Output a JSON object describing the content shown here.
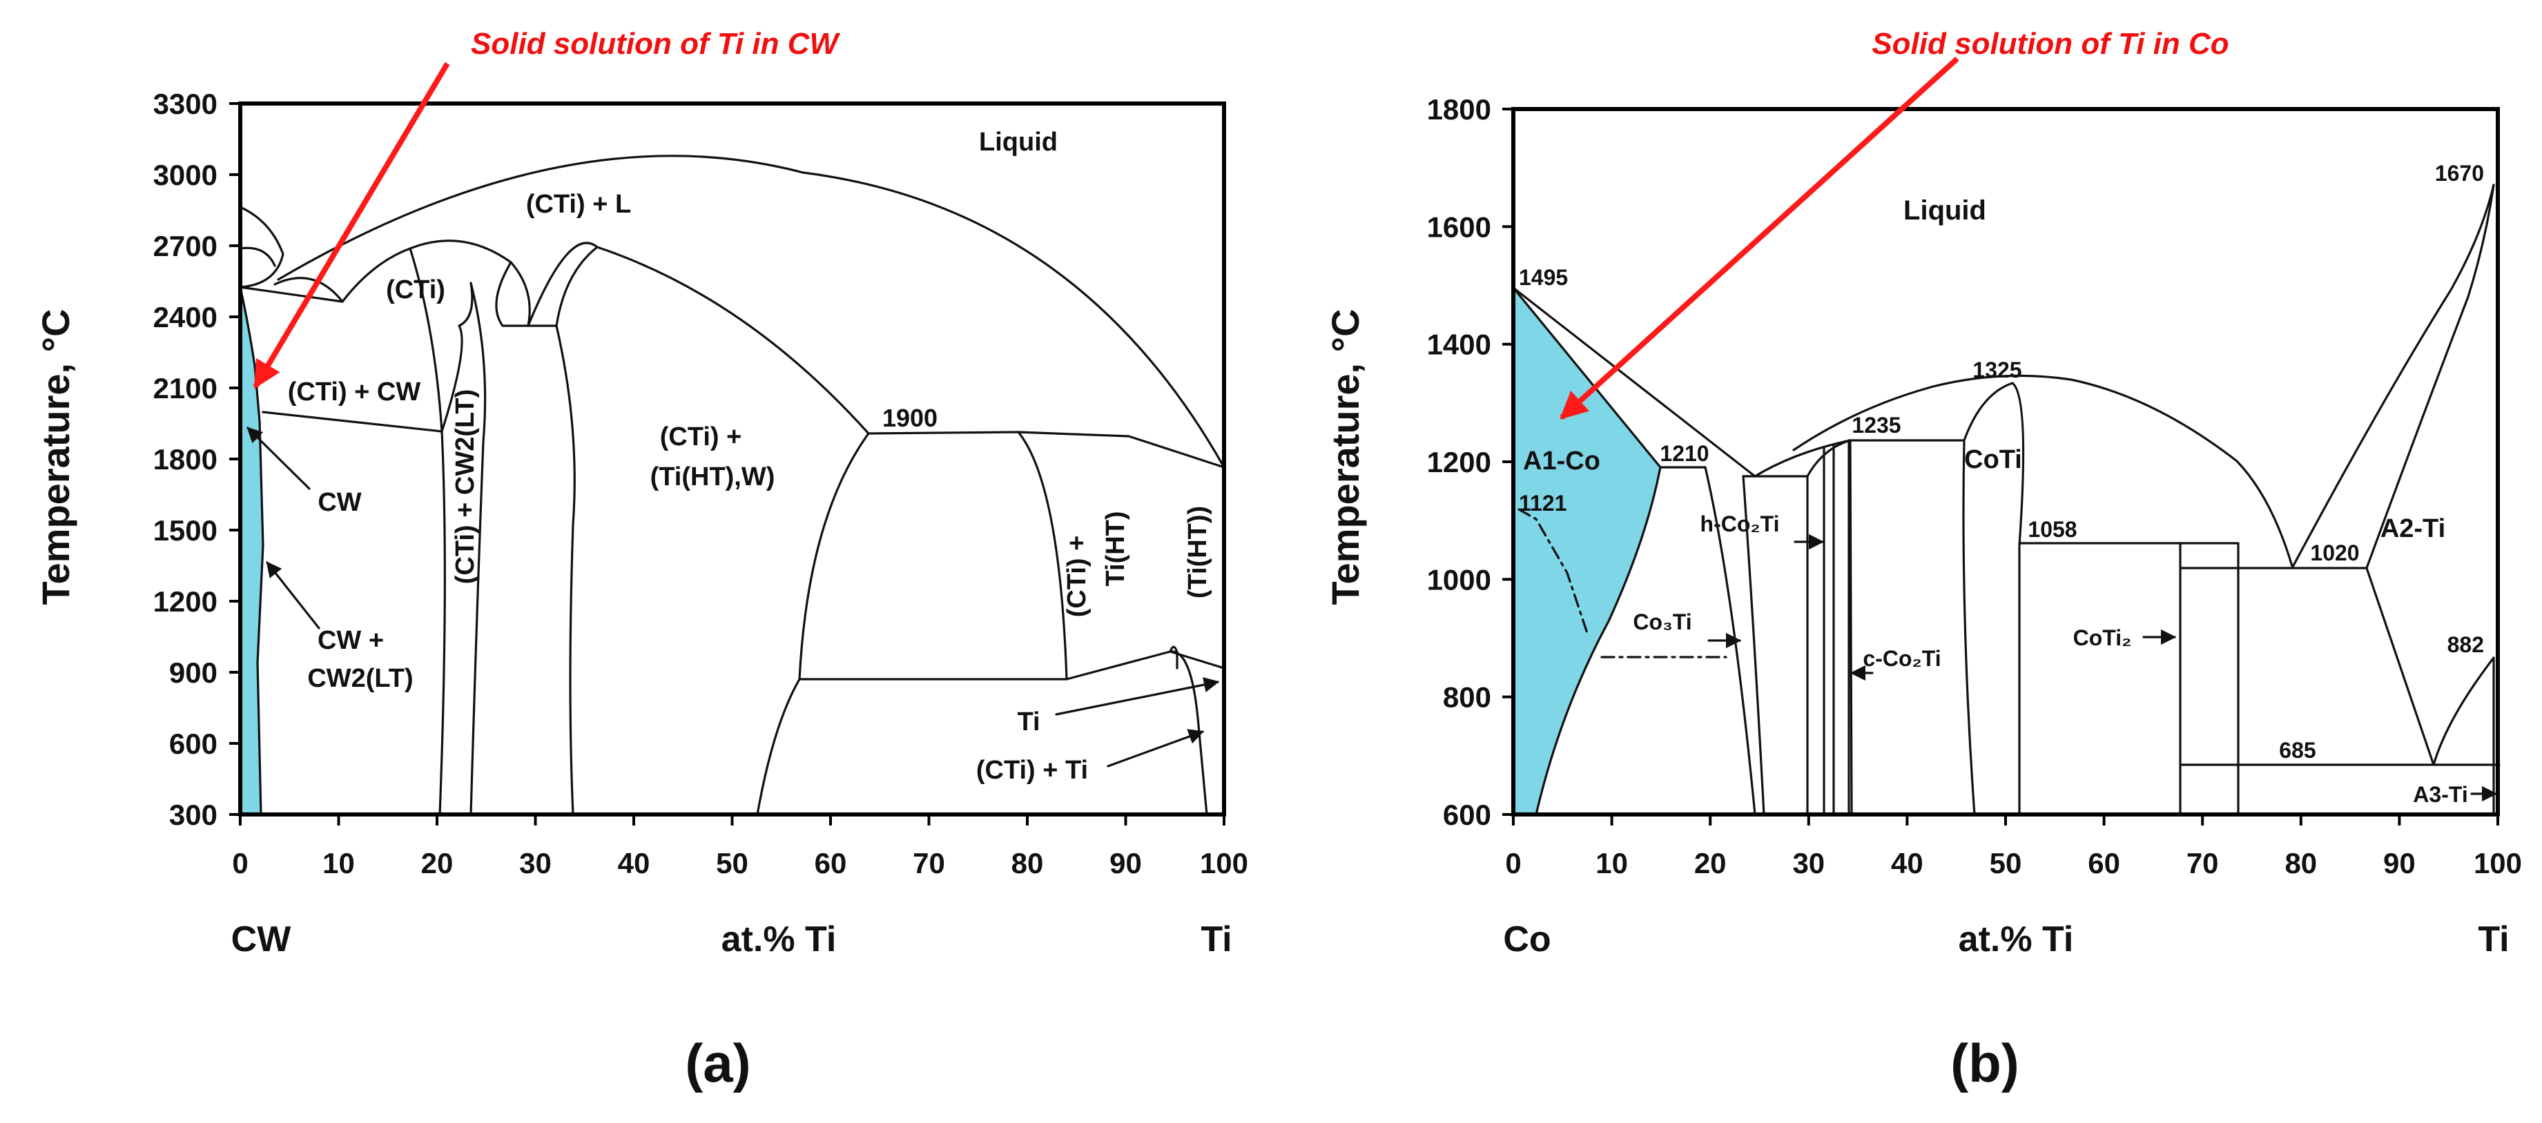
{
  "colors": {
    "shade": "#7fd6e6",
    "annotation": "#ff1a1a",
    "ink": "#111111"
  },
  "figure": {
    "panels": [
      {
        "id": "a",
        "panel_label": "(a)",
        "annotation": "Solid solution of Ti in CW",
        "ylabel": "Temperature, °C",
        "x_unit_label": "at.% Ti",
        "x_left_label": "CW",
        "x_right_label": "Ti",
        "xticks": [
          "0",
          "10",
          "20",
          "30",
          "40",
          "50",
          "60",
          "70",
          "80",
          "90",
          "100"
        ],
        "yticks": [
          "300",
          "600",
          "900",
          "1200",
          "1500",
          "1800",
          "2100",
          "2400",
          "2700",
          "3000",
          "3300"
        ],
        "texts": {
          "liquid": "Liquid",
          "cti_l": "(CTi) + L",
          "cti": "(CTi)",
          "cti_cw": "(CTi) + CW",
          "cw": "CW",
          "cw_cw2_1": "CW +",
          "cw_cw2_2": "CW2(LT)",
          "mid_1": "(CTi) +",
          "mid_2": "(Ti(HT),W)",
          "t1900": "1900",
          "v_cti_cw2": "(CTi)  + CW2(LT)",
          "v_cti_tiht_1": "(CTi) +",
          "v_cti_tiht_2": "Ti(HT)",
          "v_tiht": "(Ti(HT))",
          "ti": "Ti",
          "cti_ti": "(CTi) + Ti"
        }
      },
      {
        "id": "b",
        "panel_label": "(b)",
        "annotation": "Solid solution of Ti in Co",
        "ylabel": "Temperature, °C",
        "x_unit_label": "at.% Ti",
        "x_left_label": "Co",
        "x_right_label": "Ti",
        "xticks": [
          "0",
          "10",
          "20",
          "30",
          "40",
          "50",
          "60",
          "70",
          "80",
          "90",
          "100"
        ],
        "yticks": [
          "600",
          "800",
          "1000",
          "1200",
          "1400",
          "1600",
          "1800"
        ],
        "texts": {
          "liquid": "Liquid",
          "t1495": "1495",
          "t1670": "1670",
          "t1325": "1325",
          "t1235": "1235",
          "t1210": "1210",
          "a1co": "A1-Co",
          "t1121": "1121",
          "coti": "CoTi",
          "t1058": "1058",
          "t1020": "1020",
          "a2ti": "A2-Ti",
          "t882": "882",
          "hco2ti": "h-Co₂Ti",
          "co3ti": "Co₃Ti",
          "cco2ti": "c-Co₂Ti",
          "coti2": "CoTi₂",
          "t685": "685",
          "a3ti": "A3-Ti"
        }
      }
    ]
  },
  "chart_data": [
    {
      "type": "line",
      "title": "",
      "xlabel": "at.% Ti",
      "ylabel": "Temperature, °C",
      "xlim": [
        0,
        100
      ],
      "ylim": [
        300,
        3300
      ],
      "x_end_labels": [
        "CW",
        "Ti"
      ],
      "labeled_points": [
        {
          "name": "1900",
          "x": 63,
          "y": 1900
        }
      ],
      "series": []
    },
    {
      "type": "line",
      "title": "",
      "xlabel": "at.% Ti",
      "ylabel": "Temperature, °C",
      "xlim": [
        0,
        100
      ],
      "ylim": [
        600,
        1800
      ],
      "x_end_labels": [
        "Co",
        "Ti"
      ],
      "labeled_points": [
        {
          "name": "1495",
          "x": 0,
          "y": 1495
        },
        {
          "name": "1670",
          "x": 100,
          "y": 1670
        },
        {
          "name": "1325",
          "x": 49,
          "y": 1325
        },
        {
          "name": "1235",
          "x": 34,
          "y": 1235
        },
        {
          "name": "1210",
          "x": 20,
          "y": 1210
        },
        {
          "name": "1121",
          "x": 0,
          "y": 1121
        },
        {
          "name": "1058",
          "x": 56,
          "y": 1058
        },
        {
          "name": "1020",
          "x": 79,
          "y": 1020
        },
        {
          "name": "882",
          "x": 100,
          "y": 882
        },
        {
          "name": "685",
          "x": 80,
          "y": 685
        }
      ],
      "series": []
    }
  ]
}
